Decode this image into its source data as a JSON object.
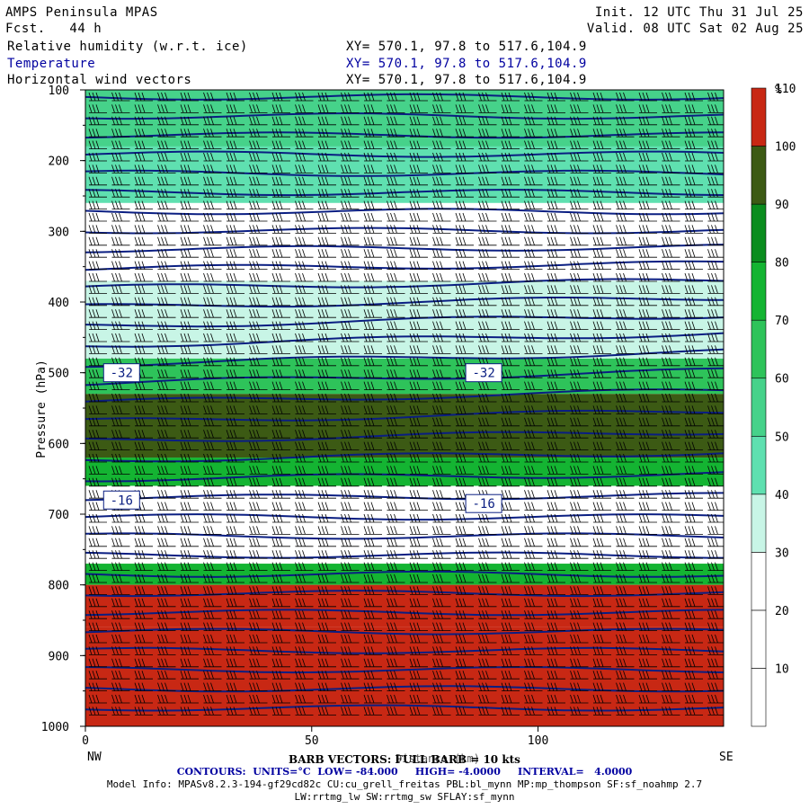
{
  "header": {
    "title": "AMPS Peninsula MPAS",
    "fcst": "Fcst.   44 h",
    "init": "Init. 12 UTC Thu 31 Jul 25",
    "valid": "Valid. 08 UTC Sat 02 Aug 25",
    "fields": [
      {
        "name": "Relative humidity (w.r.t. ice)",
        "xy": "XY= 570.1, 97.8 to 517.6,104.9"
      },
      {
        "name": "Temperature",
        "xy": "XY= 570.1, 97.8 to 517.6,104.9"
      },
      {
        "name": "Horizontal wind vectors",
        "xy": "XY= 570.1, 97.8 to 517.6,104.9"
      }
    ]
  },
  "footer": {
    "barb": "BARB VECTORS: FULL BARB = 10 kts",
    "contours": "CONTOURS:  UNITS=°C  LOW= -84.000     HIGH= -4.0000     INTERVAL=   4.0000",
    "model_info": "Model Info: MPASv8.2.3-194-gf29cd82c CU:cu_grell_freitas PBL:bl_mynn MP:mp_thompson SF:sf_noahmp 2.7",
    "model_info2": "LW:rrtmg_lw SW:rrtmg_sw SFLAY:sf_mynn",
    "dist_label": "Distance (km)"
  },
  "chart_data": {
    "type": "heatmap",
    "ylabel": "Pressure (hPa)",
    "xlabel": "Distance (km)",
    "x_range": [
      0,
      141
    ],
    "y_range": [
      1000,
      100
    ],
    "y_ticks": [
      100,
      200,
      300,
      400,
      500,
      600,
      700,
      800,
      900,
      1000
    ],
    "x_ticks": [
      0,
      50,
      100
    ],
    "x_end_labels": {
      "left": "NW",
      "right": "SE"
    },
    "colorbar": {
      "unit": "%",
      "levels": [
        10,
        20,
        30,
        40,
        50,
        60,
        70,
        80,
        90,
        100,
        110
      ],
      "colors": [
        "#ffffff",
        "#ffffff",
        "#ffffff",
        "#c8f5e6",
        "#5fe0b0",
        "#46d28a",
        "#2ec35a",
        "#14b432",
        "#0a8c1e",
        "#3c5a14",
        "#c82814"
      ]
    },
    "rh_layers": [
      {
        "p_top": 100,
        "p_bot": 180,
        "rh": 55
      },
      {
        "p_top": 180,
        "p_bot": 260,
        "rh": 45
      },
      {
        "p_top": 260,
        "p_bot": 370,
        "rh": 15
      },
      {
        "p_top": 370,
        "p_bot": 480,
        "rh": 35
      },
      {
        "p_top": 480,
        "p_bot": 530,
        "rh": 65
      },
      {
        "p_top": 530,
        "p_bot": 620,
        "rh": 95
      },
      {
        "p_top": 620,
        "p_bot": 660,
        "rh": 70
      },
      {
        "p_top": 660,
        "p_bot": 770,
        "rh": 15
      },
      {
        "p_top": 770,
        "p_bot": 800,
        "rh": 70
      },
      {
        "p_top": 800,
        "p_bot": 860,
        "rh": 115
      },
      {
        "p_top": 860,
        "p_bot": 1000,
        "rh": 105
      }
    ],
    "temperature_contours": {
      "units": "°C",
      "low": -84,
      "high": -4,
      "interval": 4,
      "labels": [
        {
          "value": "-32",
          "x_km": 8,
          "p": 500
        },
        {
          "value": "-32",
          "x_km": 88,
          "p": 500
        },
        {
          "value": "-16",
          "x_km": 8,
          "p": 680
        },
        {
          "value": "-16",
          "x_km": 88,
          "p": 685
        }
      ]
    },
    "barbs": {
      "full_barb_kts": 10
    }
  }
}
